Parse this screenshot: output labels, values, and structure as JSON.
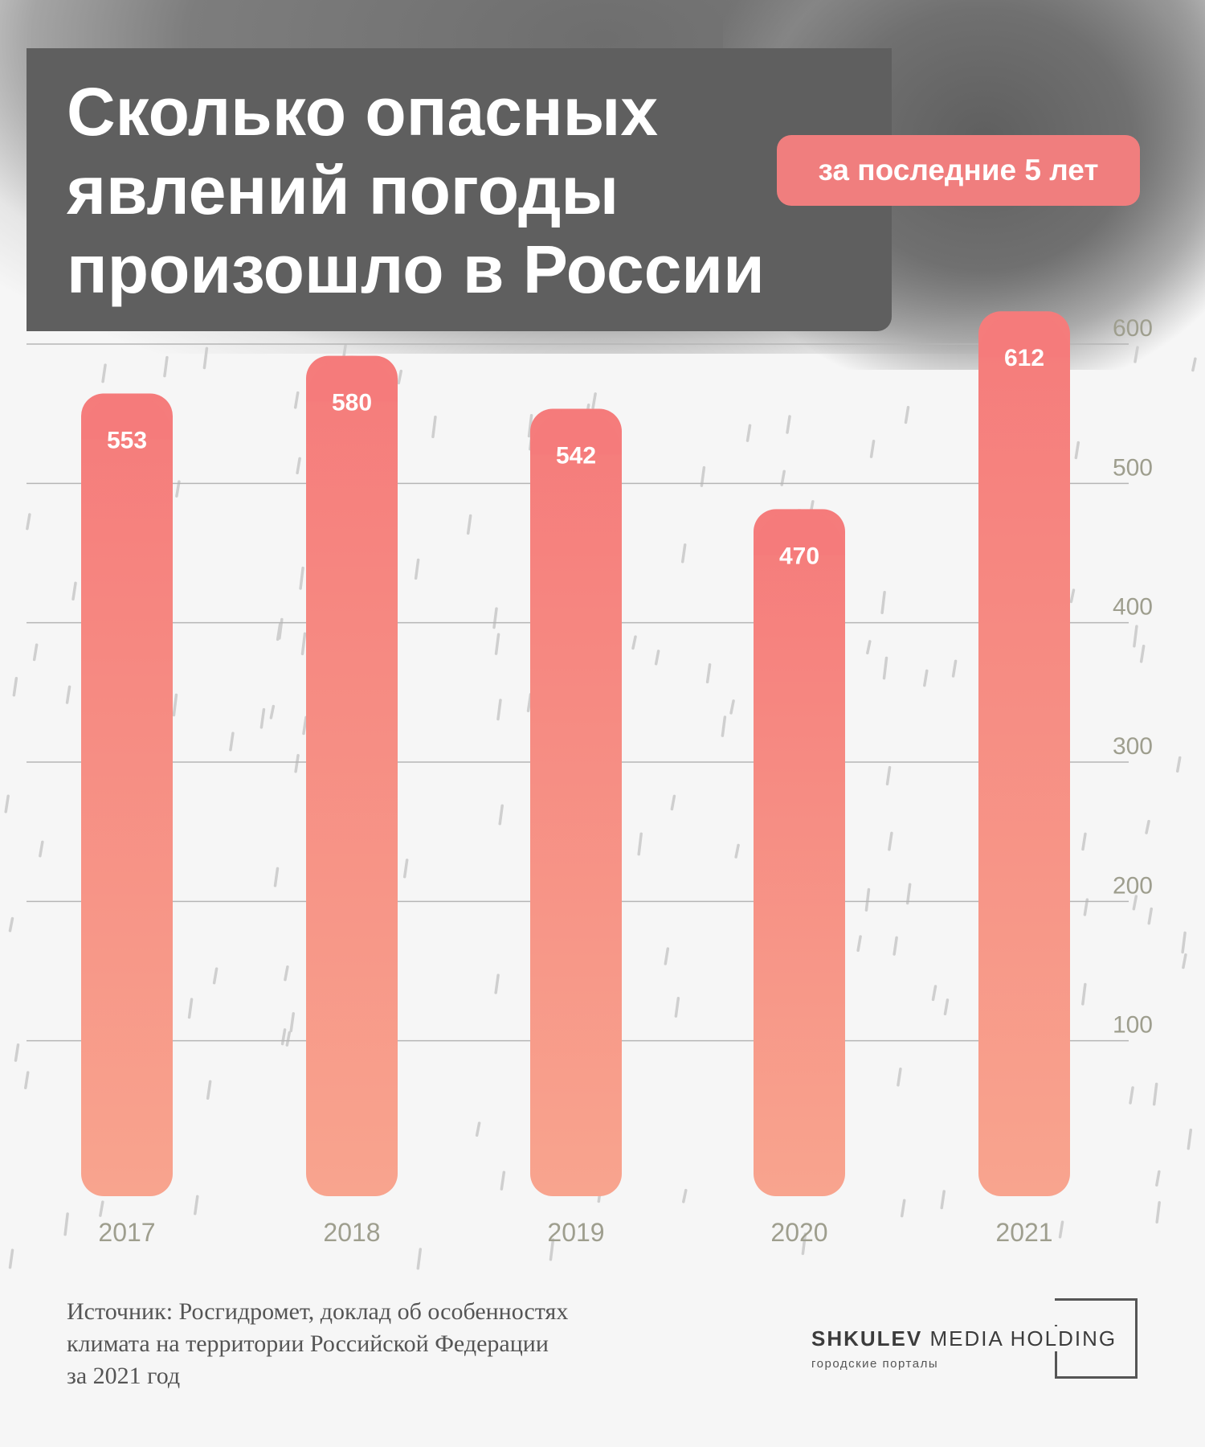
{
  "header": {
    "title_lines": [
      "Сколько опасных",
      "явлений погоды",
      "произошло в России"
    ],
    "badge": "за последние 5 лет"
  },
  "chart_data": {
    "type": "bar",
    "categories": [
      "2017",
      "2018",
      "2019",
      "2020",
      "2021"
    ],
    "values": [
      553,
      580,
      542,
      470,
      612
    ],
    "data_labels": [
      "553",
      "580",
      "542",
      "470",
      "612"
    ],
    "ylim": [
      0,
      600
    ],
    "yticks": [
      100,
      200,
      300,
      400,
      500,
      600
    ],
    "ytick_labels": [
      "100",
      "200",
      "300",
      "400",
      "500",
      "600"
    ],
    "title": "Сколько опасных явлений погоды произошло в России",
    "xlabel": "",
    "ylabel": "",
    "grid": true,
    "colors": {
      "bar_top": "#f57b7b",
      "bar_bottom": "#f8a48e",
      "grid": "#b5b5b5",
      "tick": "#9e9e8e",
      "label": "#ffffff"
    }
  },
  "footer": {
    "source_lines": [
      "Источник: Росгидромет, доклад об особенностях",
      "климата на территории Российской Федерации",
      "за 2021 год"
    ],
    "logo_bold": "SHKULEV",
    "logo_rest": " MEDIA HOLDING",
    "logo_sub": "городские порталы"
  }
}
